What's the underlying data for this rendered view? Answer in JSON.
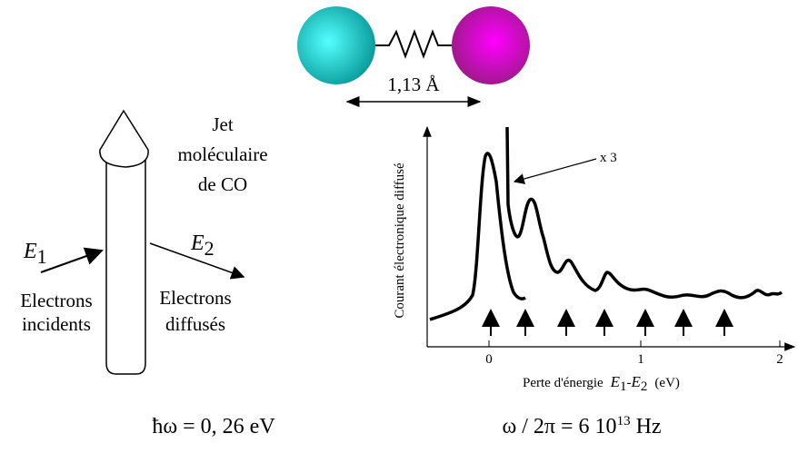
{
  "molecule": {
    "bond_length": "1,13 Å"
  },
  "jet": {
    "lines": [
      "Jet",
      "moléculaire",
      "de CO"
    ]
  },
  "incident": {
    "symbol": "E",
    "subscript": "1",
    "lines": [
      "Electrons",
      "incidents"
    ]
  },
  "scattered": {
    "symbol": "E",
    "subscript": "2",
    "lines": [
      "Electrons",
      "diffusés"
    ]
  },
  "spectrum": {
    "y_label": "Courant électronique diffusé",
    "magnification": "x 3",
    "x_ticks": [
      "0",
      "1",
      "2"
    ],
    "x_label": {
      "text": "Perte d'énergie",
      "symbol1": "E",
      "sub1": "1",
      "dash": "-",
      "symbol2": "E",
      "sub2": "2",
      "unit": "(eV)"
    }
  },
  "formulas": {
    "energy": "ħω = 0, 26 eV",
    "frequency": {
      "text": "ω / 2π = 6 10",
      "exponent": "13",
      "unit": " Hz"
    }
  }
}
